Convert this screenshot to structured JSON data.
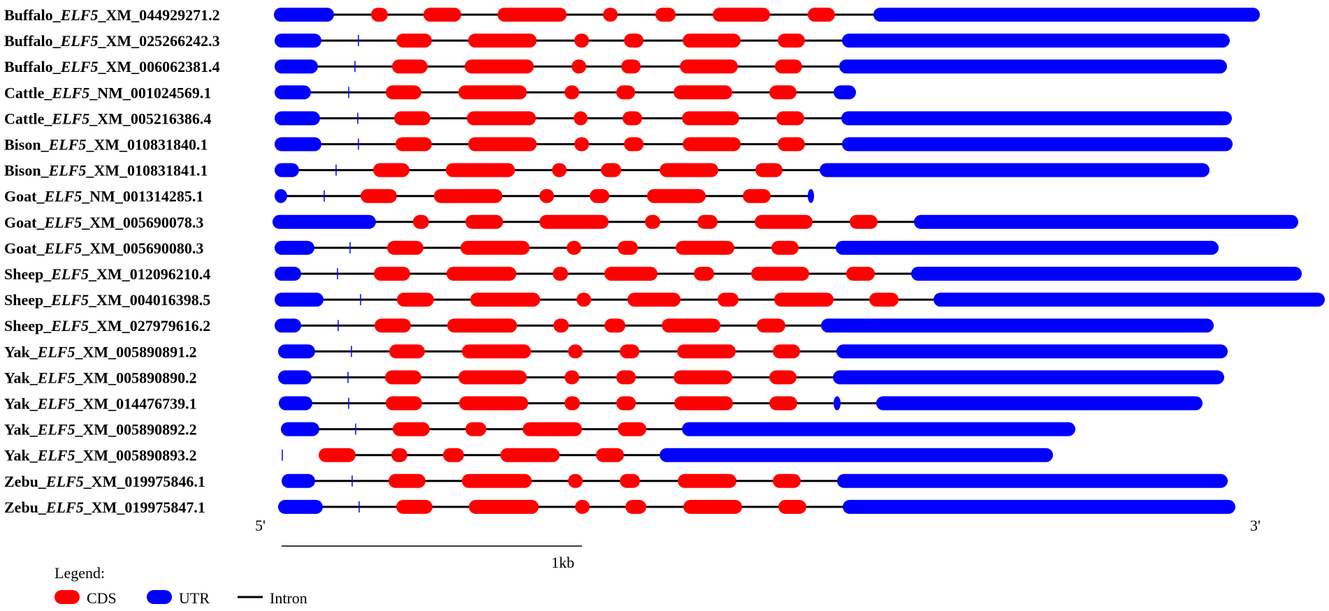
{
  "colors": {
    "cds": "#ff0000",
    "utr": "#0000ff",
    "intron": "#000000",
    "ticks": "#0000ff"
  },
  "diagram": {
    "tracks": [
      {
        "species": "Buffalo",
        "gene": "ELF5",
        "accession": "_XM_044929271.2",
        "ticks": [],
        "segments": [
          [
            "u",
            392,
            478
          ],
          [
            "c",
            531,
            555
          ],
          [
            "c",
            606,
            660
          ],
          [
            "c",
            712,
            811
          ],
          [
            "c",
            863,
            884
          ],
          [
            "c",
            938,
            967
          ],
          [
            "c",
            1020,
            1102
          ],
          [
            "c",
            1156,
            1195
          ],
          [
            "u",
            1250,
            1803
          ]
        ]
      },
      {
        "species": "Buffalo",
        "gene": "ELF5",
        "accession": "_XM_025266242.3",
        "ticks": [
          513
        ],
        "segments": [
          [
            "u",
            393,
            460
          ],
          [
            "c",
            567,
            618
          ],
          [
            "c",
            670,
            768
          ],
          [
            "c",
            822,
            843
          ],
          [
            "c",
            893,
            921
          ],
          [
            "c",
            977,
            1060
          ],
          [
            "c",
            1113,
            1152
          ],
          [
            "u",
            1205,
            1760
          ]
        ]
      },
      {
        "species": "Buffalo",
        "gene": "ELF5",
        "accession": "_XM_006062381.4",
        "ticks": [
          508
        ],
        "segments": [
          [
            "u",
            393,
            455
          ],
          [
            "c",
            561,
            612
          ],
          [
            "c",
            665,
            764
          ],
          [
            "c",
            818,
            839
          ],
          [
            "c",
            889,
            917
          ],
          [
            "c",
            973,
            1056
          ],
          [
            "c",
            1109,
            1148
          ],
          [
            "u",
            1201,
            1756
          ]
        ]
      },
      {
        "species": "Cattle",
        "gene": "ELF5",
        "accession": "_NM_001024569.1",
        "ticks": [
          499
        ],
        "segments": [
          [
            "u",
            393,
            445
          ],
          [
            "c",
            552,
            603
          ],
          [
            "c",
            656,
            754
          ],
          [
            "c",
            808,
            829
          ],
          [
            "c",
            882,
            909
          ],
          [
            "c",
            964,
            1048
          ],
          [
            "c",
            1101,
            1140
          ],
          [
            "u",
            1193,
            1225
          ]
        ]
      },
      {
        "species": "Cattle",
        "gene": "ELF5",
        "accession": "_XM_005216386.4",
        "ticks": [
          512
        ],
        "segments": [
          [
            "u",
            393,
            458
          ],
          [
            "c",
            564,
            616
          ],
          [
            "c",
            668,
            767
          ],
          [
            "c",
            821,
            841
          ],
          [
            "c",
            891,
            919
          ],
          [
            "c",
            976,
            1058
          ],
          [
            "c",
            1111,
            1151
          ],
          [
            "u",
            1204,
            1763
          ]
        ]
      },
      {
        "species": "Bison",
        "gene": "ELF5",
        "accession": "_XM_010831840.1",
        "ticks": [
          513
        ],
        "segments": [
          [
            "u",
            393,
            460
          ],
          [
            "c",
            566,
            618
          ],
          [
            "c",
            670,
            768
          ],
          [
            "c",
            822,
            843
          ],
          [
            "c",
            893,
            921
          ],
          [
            "c",
            977,
            1060
          ],
          [
            "c",
            1113,
            1152
          ],
          [
            "u",
            1205,
            1764
          ]
        ]
      },
      {
        "species": "Bison",
        "gene": "ELF5",
        "accession": "_XM_010831841.1",
        "ticks": [
          481
        ],
        "segments": [
          [
            "u",
            393,
            428
          ],
          [
            "c",
            534,
            586
          ],
          [
            "c",
            638,
            737
          ],
          [
            "c",
            790,
            811
          ],
          [
            "c",
            860,
            889
          ],
          [
            "c",
            944,
            1028
          ],
          [
            "c",
            1081,
            1120
          ],
          [
            "u",
            1173,
            1731
          ]
        ]
      },
      {
        "species": "Goat",
        "gene": "ELF5",
        "accession": "_NM_001314285.1",
        "ticks": [
          464
        ],
        "segments": [
          [
            "u",
            393,
            411
          ],
          [
            "c",
            516,
            568
          ],
          [
            "c",
            621,
            719
          ],
          [
            "c",
            772,
            793
          ],
          [
            "c",
            844,
            872
          ],
          [
            "c",
            926,
            1010
          ],
          [
            "c",
            1063,
            1103
          ],
          [
            "u",
            1156,
            1165
          ]
        ]
      },
      {
        "species": "Goat",
        "gene": "ELF5",
        "accession": "_XM_005690078.3",
        "ticks": [],
        "segments": [
          [
            "u",
            390,
            538
          ],
          [
            "c",
            591,
            614
          ],
          [
            "c",
            666,
            720
          ],
          [
            "c",
            772,
            871
          ],
          [
            "c",
            923,
            945
          ],
          [
            "c",
            998,
            1027
          ],
          [
            "c",
            1080,
            1163
          ],
          [
            "c",
            1216,
            1256
          ],
          [
            "u",
            1308,
            1858
          ]
        ]
      },
      {
        "species": "Goat",
        "gene": "ELF5",
        "accession": "_XM_005690080.3",
        "ticks": [
          501
        ],
        "segments": [
          [
            "u",
            393,
            450
          ],
          [
            "c",
            554,
            606
          ],
          [
            "c",
            659,
            758
          ],
          [
            "c",
            811,
            832
          ],
          [
            "c",
            884,
            913
          ],
          [
            "c",
            967,
            1051
          ],
          [
            "c",
            1104,
            1143
          ],
          [
            "u",
            1196,
            1744
          ]
        ]
      },
      {
        "species": "Sheep",
        "gene": "ELF5",
        "accession": "_XM_012096210.4",
        "ticks": [
          483
        ],
        "segments": [
          [
            "u",
            393,
            431
          ],
          [
            "c",
            535,
            587
          ],
          [
            "c",
            639,
            739
          ],
          [
            "c",
            791,
            813
          ],
          [
            "c",
            865,
            941
          ],
          [
            "c",
            993,
            1022
          ],
          [
            "c",
            1075,
            1158
          ],
          [
            "c",
            1211,
            1252
          ],
          [
            "u",
            1304,
            1863
          ]
        ]
      },
      {
        "species": "Sheep",
        "gene": "ELF5",
        "accession": "_XM_004016398.5",
        "ticks": [
          516
        ],
        "segments": [
          [
            "u",
            393,
            463
          ],
          [
            "c",
            568,
            621
          ],
          [
            "c",
            673,
            773
          ],
          [
            "c",
            825,
            846
          ],
          [
            "c",
            898,
            974
          ],
          [
            "c",
            1027,
            1057
          ],
          [
            "c",
            1108,
            1193
          ],
          [
            "c",
            1244,
            1286
          ],
          [
            "u",
            1336,
            1896
          ]
        ]
      },
      {
        "species": "Sheep",
        "gene": "ELF5",
        "accession": "_XM_027979616.2",
        "ticks": [
          484
        ],
        "segments": [
          [
            "u",
            393,
            431
          ],
          [
            "c",
            536,
            588
          ],
          [
            "c",
            640,
            740
          ],
          [
            "c",
            792,
            814
          ],
          [
            "c",
            865,
            895
          ],
          [
            "c",
            947,
            1031
          ],
          [
            "c",
            1083,
            1124
          ],
          [
            "u",
            1175,
            1737
          ]
        ]
      },
      {
        "species": "Yak",
        "gene": "ELF5",
        "accession": "_XM_005890891.2",
        "ticks": [
          503
        ],
        "segments": [
          [
            "u",
            398,
            451
          ],
          [
            "c",
            557,
            608
          ],
          [
            "c",
            661,
            760
          ],
          [
            "c",
            813,
            834
          ],
          [
            "c",
            887,
            915
          ],
          [
            "c",
            969,
            1053
          ],
          [
            "c",
            1106,
            1145
          ],
          [
            "u",
            1197,
            1757
          ]
        ]
      },
      {
        "species": "Yak",
        "gene": "ELF5",
        "accession": "_XM_005890890.2",
        "ticks": [
          498
        ],
        "segments": [
          [
            "u",
            398,
            446
          ],
          [
            "c",
            551,
            603
          ],
          [
            "c",
            656,
            754
          ],
          [
            "c",
            808,
            829
          ],
          [
            "c",
            882,
            910
          ],
          [
            "c",
            964,
            1048
          ],
          [
            "c",
            1101,
            1140
          ],
          [
            "u",
            1192,
            1752
          ]
        ]
      },
      {
        "species": "Yak",
        "gene": "ELF5",
        "accession": "_XM_014476739.1",
        "ticks": [
          499
        ],
        "segments": [
          [
            "u",
            399,
            447
          ],
          [
            "c",
            552,
            604
          ],
          [
            "c",
            657,
            756
          ],
          [
            "c",
            808,
            830
          ],
          [
            "c",
            882,
            910
          ],
          [
            "c",
            965,
            1049
          ],
          [
            "c",
            1101,
            1141
          ],
          [
            "u",
            1193,
            1203
          ],
          [
            "u",
            1254,
            1721
          ]
        ]
      },
      {
        "species": "Yak",
        "gene": "ELF5",
        "accession": "_XM_005890892.2",
        "ticks": [
          509
        ],
        "segments": [
          [
            "u",
            402,
            457
          ],
          [
            "c",
            562,
            615
          ],
          [
            "c",
            666,
            696
          ],
          [
            "c",
            748,
            833
          ],
          [
            "c",
            884,
            925
          ],
          [
            "u",
            976,
            1539
          ]
        ]
      },
      {
        "species": "Yak",
        "gene": "ELF5",
        "accession": "_XM_005890893.2",
        "ticks": [
          404
        ],
        "segments": [
          [
            "c",
            456,
            509
          ],
          [
            "c",
            560,
            583
          ],
          [
            "c",
            634,
            664
          ],
          [
            "c",
            716,
            801
          ],
          [
            "c",
            853,
            893
          ],
          [
            "u",
            944,
            1507
          ]
        ]
      },
      {
        "species": "Zebu",
        "gene": "ELF5",
        "accession": "_XM_019975846.1",
        "ticks": [
          504
        ],
        "segments": [
          [
            "u",
            403,
            451
          ],
          [
            "c",
            556,
            609
          ],
          [
            "c",
            661,
            761
          ],
          [
            "c",
            813,
            834
          ],
          [
            "c",
            887,
            916
          ],
          [
            "c",
            970,
            1054
          ],
          [
            "c",
            1106,
            1146
          ],
          [
            "u",
            1198,
            1757
          ]
        ]
      },
      {
        "species": "Zebu",
        "gene": "ELF5",
        "accession": "_XM_019975847.1",
        "ticks": [
          514
        ],
        "segments": [
          [
            "u",
            398,
            462
          ],
          [
            "c",
            567,
            619
          ],
          [
            "c",
            671,
            771
          ],
          [
            "c",
            823,
            844
          ],
          [
            "c",
            895,
            925
          ],
          [
            "c",
            978,
            1062
          ],
          [
            "c",
            1114,
            1154
          ],
          [
            "u",
            1206,
            1768
          ]
        ]
      }
    ],
    "end_5prime": "5'",
    "end_3prime": "3'",
    "scale_label": "1kb"
  },
  "legend": {
    "title": "Legend:",
    "items": [
      {
        "key": "cds",
        "label": "CDS"
      },
      {
        "key": "utr",
        "label": "UTR"
      },
      {
        "key": "intron",
        "label": "Intron"
      }
    ]
  }
}
